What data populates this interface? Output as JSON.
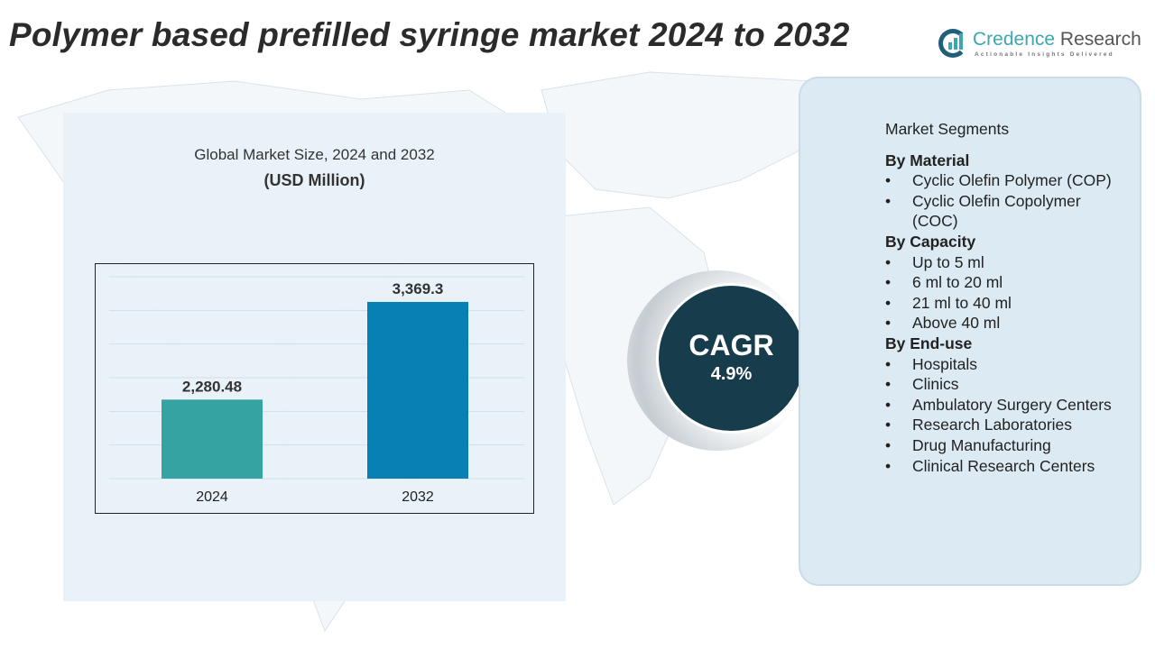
{
  "title": "Polymer based prefilled syringe market 2024 to 2032",
  "logo": {
    "name_a": "Credence",
    "name_b": " Research",
    "tagline": "Actionable Insights Delivered"
  },
  "chart_panel": {
    "title": "Global Market Size, 2024 and 2032",
    "unit": "(USD Million)"
  },
  "chart_data": {
    "type": "bar",
    "title": "Global Market Size, 2024 and 2032",
    "ylabel": "(USD Million)",
    "categories": [
      "2024",
      "2032"
    ],
    "values": [
      2280.48,
      3369.3
    ],
    "data_labels": [
      "2,280.48",
      "3,369.3"
    ],
    "colors": [
      "#35a3a1",
      "#0880b3"
    ],
    "ylim": [
      1400,
      3650
    ],
    "grid": true
  },
  "cagr": {
    "label": "CAGR",
    "value": "4.9%"
  },
  "segments": {
    "heading": "Market Segments",
    "groups": [
      {
        "name": "By Material",
        "items": [
          "Cyclic Olefin Polymer (COP)",
          "Cyclic Olefin Copolymer (COC)"
        ]
      },
      {
        "name": "By Capacity",
        "items": [
          "Up to 5 ml",
          "6 ml to 20 ml",
          "21 ml to 40 ml",
          "Above 40 ml"
        ]
      },
      {
        "name": "By End-use",
        "items": [
          "Hospitals",
          "Clinics",
          "Ambulatory Surgery Centers",
          "Research Laboratories",
          "Drug Manufacturing",
          "Clinical Research Centers"
        ]
      }
    ]
  }
}
